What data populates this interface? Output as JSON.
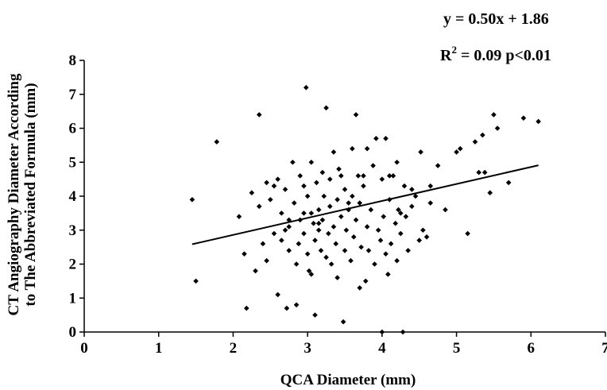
{
  "chart_data": {
    "type": "scatter",
    "xlabel": "QCA Diameter (mm)",
    "ylabel_line1": "CT Angiography Diameter According",
    "ylabel_line2": "to The Abbreviated Formula (mm)",
    "xlim": [
      0,
      7
    ],
    "ylim": [
      0,
      8
    ],
    "x_ticks": [
      "0",
      "1",
      "2",
      "3",
      "4",
      "5",
      "6",
      "7"
    ],
    "y_ticks": [
      "0",
      "1",
      "2",
      "3",
      "4",
      "5",
      "6",
      "7",
      "8"
    ],
    "grid": false,
    "legend": "none",
    "annotations": {
      "equation": "y = 0.50x + 1.86",
      "r_prefix": "R",
      "r_sup": "2",
      "r_rest": " = 0.09 p<0.01"
    },
    "trendline": {
      "slope": 0.5,
      "intercept": 1.86,
      "x_start": 1.45,
      "x_end": 6.1
    },
    "points": [
      [
        1.45,
        3.9
      ],
      [
        1.5,
        1.5
      ],
      [
        1.78,
        5.6
      ],
      [
        2.08,
        3.4
      ],
      [
        2.15,
        2.3
      ],
      [
        2.18,
        0.7
      ],
      [
        2.25,
        4.1
      ],
      [
        2.3,
        1.8
      ],
      [
        2.35,
        6.4
      ],
      [
        2.35,
        3.7
      ],
      [
        2.4,
        2.6
      ],
      [
        2.45,
        4.4
      ],
      [
        2.45,
        2.1
      ],
      [
        2.5,
        3.9
      ],
      [
        2.55,
        2.9
      ],
      [
        2.6,
        4.5
      ],
      [
        2.6,
        1.1
      ],
      [
        2.65,
        2.7
      ],
      [
        2.65,
        3.5
      ],
      [
        2.7,
        3.0
      ],
      [
        2.7,
        4.2
      ],
      [
        2.72,
        0.7
      ],
      [
        2.75,
        2.4
      ],
      [
        2.75,
        3.1
      ],
      [
        2.8,
        5.0
      ],
      [
        2.82,
        3.8
      ],
      [
        2.85,
        2.0
      ],
      [
        2.85,
        0.8
      ],
      [
        2.88,
        2.6
      ],
      [
        2.9,
        4.6
      ],
      [
        2.9,
        3.3
      ],
      [
        2.95,
        2.9
      ],
      [
        2.95,
        3.5
      ],
      [
        2.98,
        7.2
      ],
      [
        3.0,
        2.3
      ],
      [
        3.0,
        4.0
      ],
      [
        3.02,
        1.8
      ],
      [
        3.05,
        1.7
      ],
      [
        3.05,
        5.0
      ],
      [
        3.08,
        3.2
      ],
      [
        3.1,
        0.5
      ],
      [
        3.1,
        2.7
      ],
      [
        3.12,
        4.4
      ],
      [
        3.15,
        3.6
      ],
      [
        3.15,
        3.0
      ],
      [
        3.18,
        2.4
      ],
      [
        3.2,
        4.7
      ],
      [
        3.2,
        3.3
      ],
      [
        3.22,
        4.0
      ],
      [
        3.25,
        6.6
      ],
      [
        3.25,
        2.2
      ],
      [
        3.28,
        2.9
      ],
      [
        3.3,
        3.7
      ],
      [
        3.3,
        4.5
      ],
      [
        3.32,
        2.0
      ],
      [
        3.35,
        5.3
      ],
      [
        3.35,
        3.1
      ],
      [
        3.38,
        2.6
      ],
      [
        3.4,
        1.6
      ],
      [
        3.4,
        3.9
      ],
      [
        3.42,
        4.8
      ],
      [
        3.45,
        3.4
      ],
      [
        3.48,
        0.3
      ],
      [
        3.5,
        2.4
      ],
      [
        3.5,
        4.2
      ],
      [
        3.52,
        3.0
      ],
      [
        3.55,
        3.6
      ],
      [
        3.58,
        2.1
      ],
      [
        3.6,
        5.4
      ],
      [
        3.6,
        4.0
      ],
      [
        3.62,
        2.8
      ],
      [
        3.65,
        6.4
      ],
      [
        3.65,
        3.3
      ],
      [
        3.68,
        4.6
      ],
      [
        3.7,
        1.3
      ],
      [
        3.7,
        3.8
      ],
      [
        3.72,
        2.5
      ],
      [
        3.75,
        4.3
      ],
      [
        3.78,
        1.5
      ],
      [
        3.8,
        3.1
      ],
      [
        3.8,
        5.4
      ],
      [
        3.82,
        2.4
      ],
      [
        3.85,
        3.6
      ],
      [
        3.88,
        4.9
      ],
      [
        3.9,
        2.0
      ],
      [
        3.92,
        5.7
      ],
      [
        3.95,
        3.0
      ],
      [
        3.98,
        2.7
      ],
      [
        4.0,
        0.0
      ],
      [
        4.0,
        4.5
      ],
      [
        4.02,
        3.4
      ],
      [
        4.05,
        2.3
      ],
      [
        4.05,
        5.7
      ],
      [
        4.08,
        1.7
      ],
      [
        4.1,
        3.9
      ],
      [
        4.12,
        2.6
      ],
      [
        4.15,
        4.6
      ],
      [
        4.18,
        3.2
      ],
      [
        4.2,
        2.1
      ],
      [
        4.2,
        5.0
      ],
      [
        4.22,
        3.6
      ],
      [
        4.25,
        2.9
      ],
      [
        4.28,
        0.0
      ],
      [
        4.3,
        4.3
      ],
      [
        4.32,
        3.4
      ],
      [
        4.35,
        2.4
      ],
      [
        4.4,
        3.7
      ],
      [
        4.45,
        4.0
      ],
      [
        4.5,
        2.7
      ],
      [
        4.52,
        5.3
      ],
      [
        4.55,
        3.0
      ],
      [
        4.6,
        2.8
      ],
      [
        4.65,
        4.3
      ],
      [
        4.65,
        3.8
      ],
      [
        4.75,
        4.9
      ],
      [
        4.85,
        3.6
      ],
      [
        5.0,
        5.3
      ],
      [
        5.05,
        5.4
      ],
      [
        5.15,
        2.9
      ],
      [
        5.25,
        5.6
      ],
      [
        5.3,
        4.7
      ],
      [
        5.35,
        5.8
      ],
      [
        5.38,
        4.7
      ],
      [
        5.45,
        4.1
      ],
      [
        5.5,
        6.4
      ],
      [
        5.55,
        6.0
      ],
      [
        5.7,
        4.4
      ],
      [
        5.9,
        6.3
      ],
      [
        6.1,
        6.2
      ],
      [
        2.55,
        4.3
      ],
      [
        2.95,
        4.3
      ],
      [
        3.45,
        4.6
      ],
      [
        3.75,
        4.6
      ],
      [
        4.1,
        4.6
      ],
      [
        4.4,
        4.2
      ],
      [
        3.05,
        3.5
      ],
      [
        3.15,
        3.2
      ],
      [
        3.55,
        3.8
      ],
      [
        2.75,
        3.3
      ],
      [
        4.25,
        3.5
      ]
    ]
  }
}
